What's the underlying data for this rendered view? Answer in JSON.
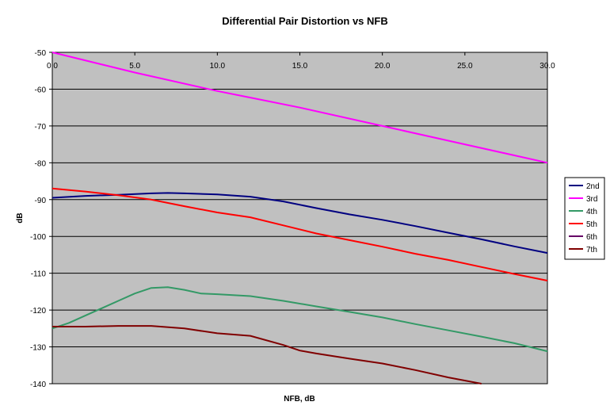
{
  "chart_data": {
    "type": "line",
    "title": "Differential Pair Distortion vs NFB",
    "xlabel": "NFB, dB",
    "ylabel": "dB",
    "xlim": [
      0,
      30
    ],
    "ylim": [
      -140,
      -50
    ],
    "xticks": [
      "0.0",
      "5.0",
      "10.0",
      "15.0",
      "20.0",
      "25.0",
      "30.0"
    ],
    "yticks": [
      "-50",
      "-60",
      "-70",
      "-80",
      "-90",
      "-100",
      "-110",
      "-120",
      "-130",
      "-140"
    ],
    "grid": "horizontal",
    "plot_background": "#c0c0c0",
    "legend_position": "right",
    "series": [
      {
        "name": "2nd",
        "color": "#000080",
        "x": [
          0,
          2,
          4,
          6,
          7,
          8,
          10,
          12,
          14,
          16,
          18,
          20,
          22,
          24,
          26,
          28,
          30
        ],
        "y": [
          -89.5,
          -89,
          -88.7,
          -88.3,
          -88.2,
          -88.3,
          -88.6,
          -89.2,
          -90.5,
          -92.3,
          -94,
          -95.5,
          -97.2,
          -99,
          -100.8,
          -102.7,
          -104.5
        ]
      },
      {
        "name": "3rd",
        "color": "#ff00ff",
        "x": [
          0,
          5,
          10,
          12,
          15,
          20,
          25,
          30
        ],
        "y": [
          -50,
          -55.5,
          -60.5,
          -62.3,
          -65,
          -70,
          -75,
          -80
        ]
      },
      {
        "name": "4th",
        "color": "#339966",
        "x": [
          0,
          1,
          2,
          3,
          4,
          5,
          6,
          7,
          8,
          9,
          10,
          12,
          14,
          16,
          18,
          20,
          22,
          24,
          26,
          28,
          30
        ],
        "y": [
          -125,
          -123.5,
          -121.5,
          -119.5,
          -117.5,
          -115.5,
          -114,
          -113.8,
          -114.5,
          -115.5,
          -115.7,
          -116.2,
          -117.5,
          -119,
          -120.5,
          -122,
          -123.8,
          -125.5,
          -127.2,
          -129,
          -131.2
        ]
      },
      {
        "name": "5th",
        "color": "#ff0000",
        "x": [
          0,
          2,
          4,
          6,
          8,
          10,
          12,
          14,
          16,
          18,
          20,
          22,
          24,
          26,
          28,
          30
        ],
        "y": [
          -87,
          -87.8,
          -88.8,
          -90,
          -91.8,
          -93.5,
          -94.8,
          -97,
          -99.2,
          -101,
          -102.8,
          -104.7,
          -106.4,
          -108.3,
          -110.2,
          -112
        ]
      },
      {
        "name": "6th",
        "color": "#660066",
        "x": [],
        "y": []
      },
      {
        "name": "7th",
        "color": "#800000",
        "x": [
          0,
          2,
          4,
          6,
          8,
          10,
          12,
          14,
          15,
          16,
          18,
          20,
          22,
          24,
          26
        ],
        "y": [
          -124.5,
          -124.5,
          -124.3,
          -124.3,
          -125,
          -126.3,
          -127,
          -129.5,
          -131,
          -131.8,
          -133.2,
          -134.5,
          -136.3,
          -138.3,
          -140
        ]
      }
    ]
  }
}
